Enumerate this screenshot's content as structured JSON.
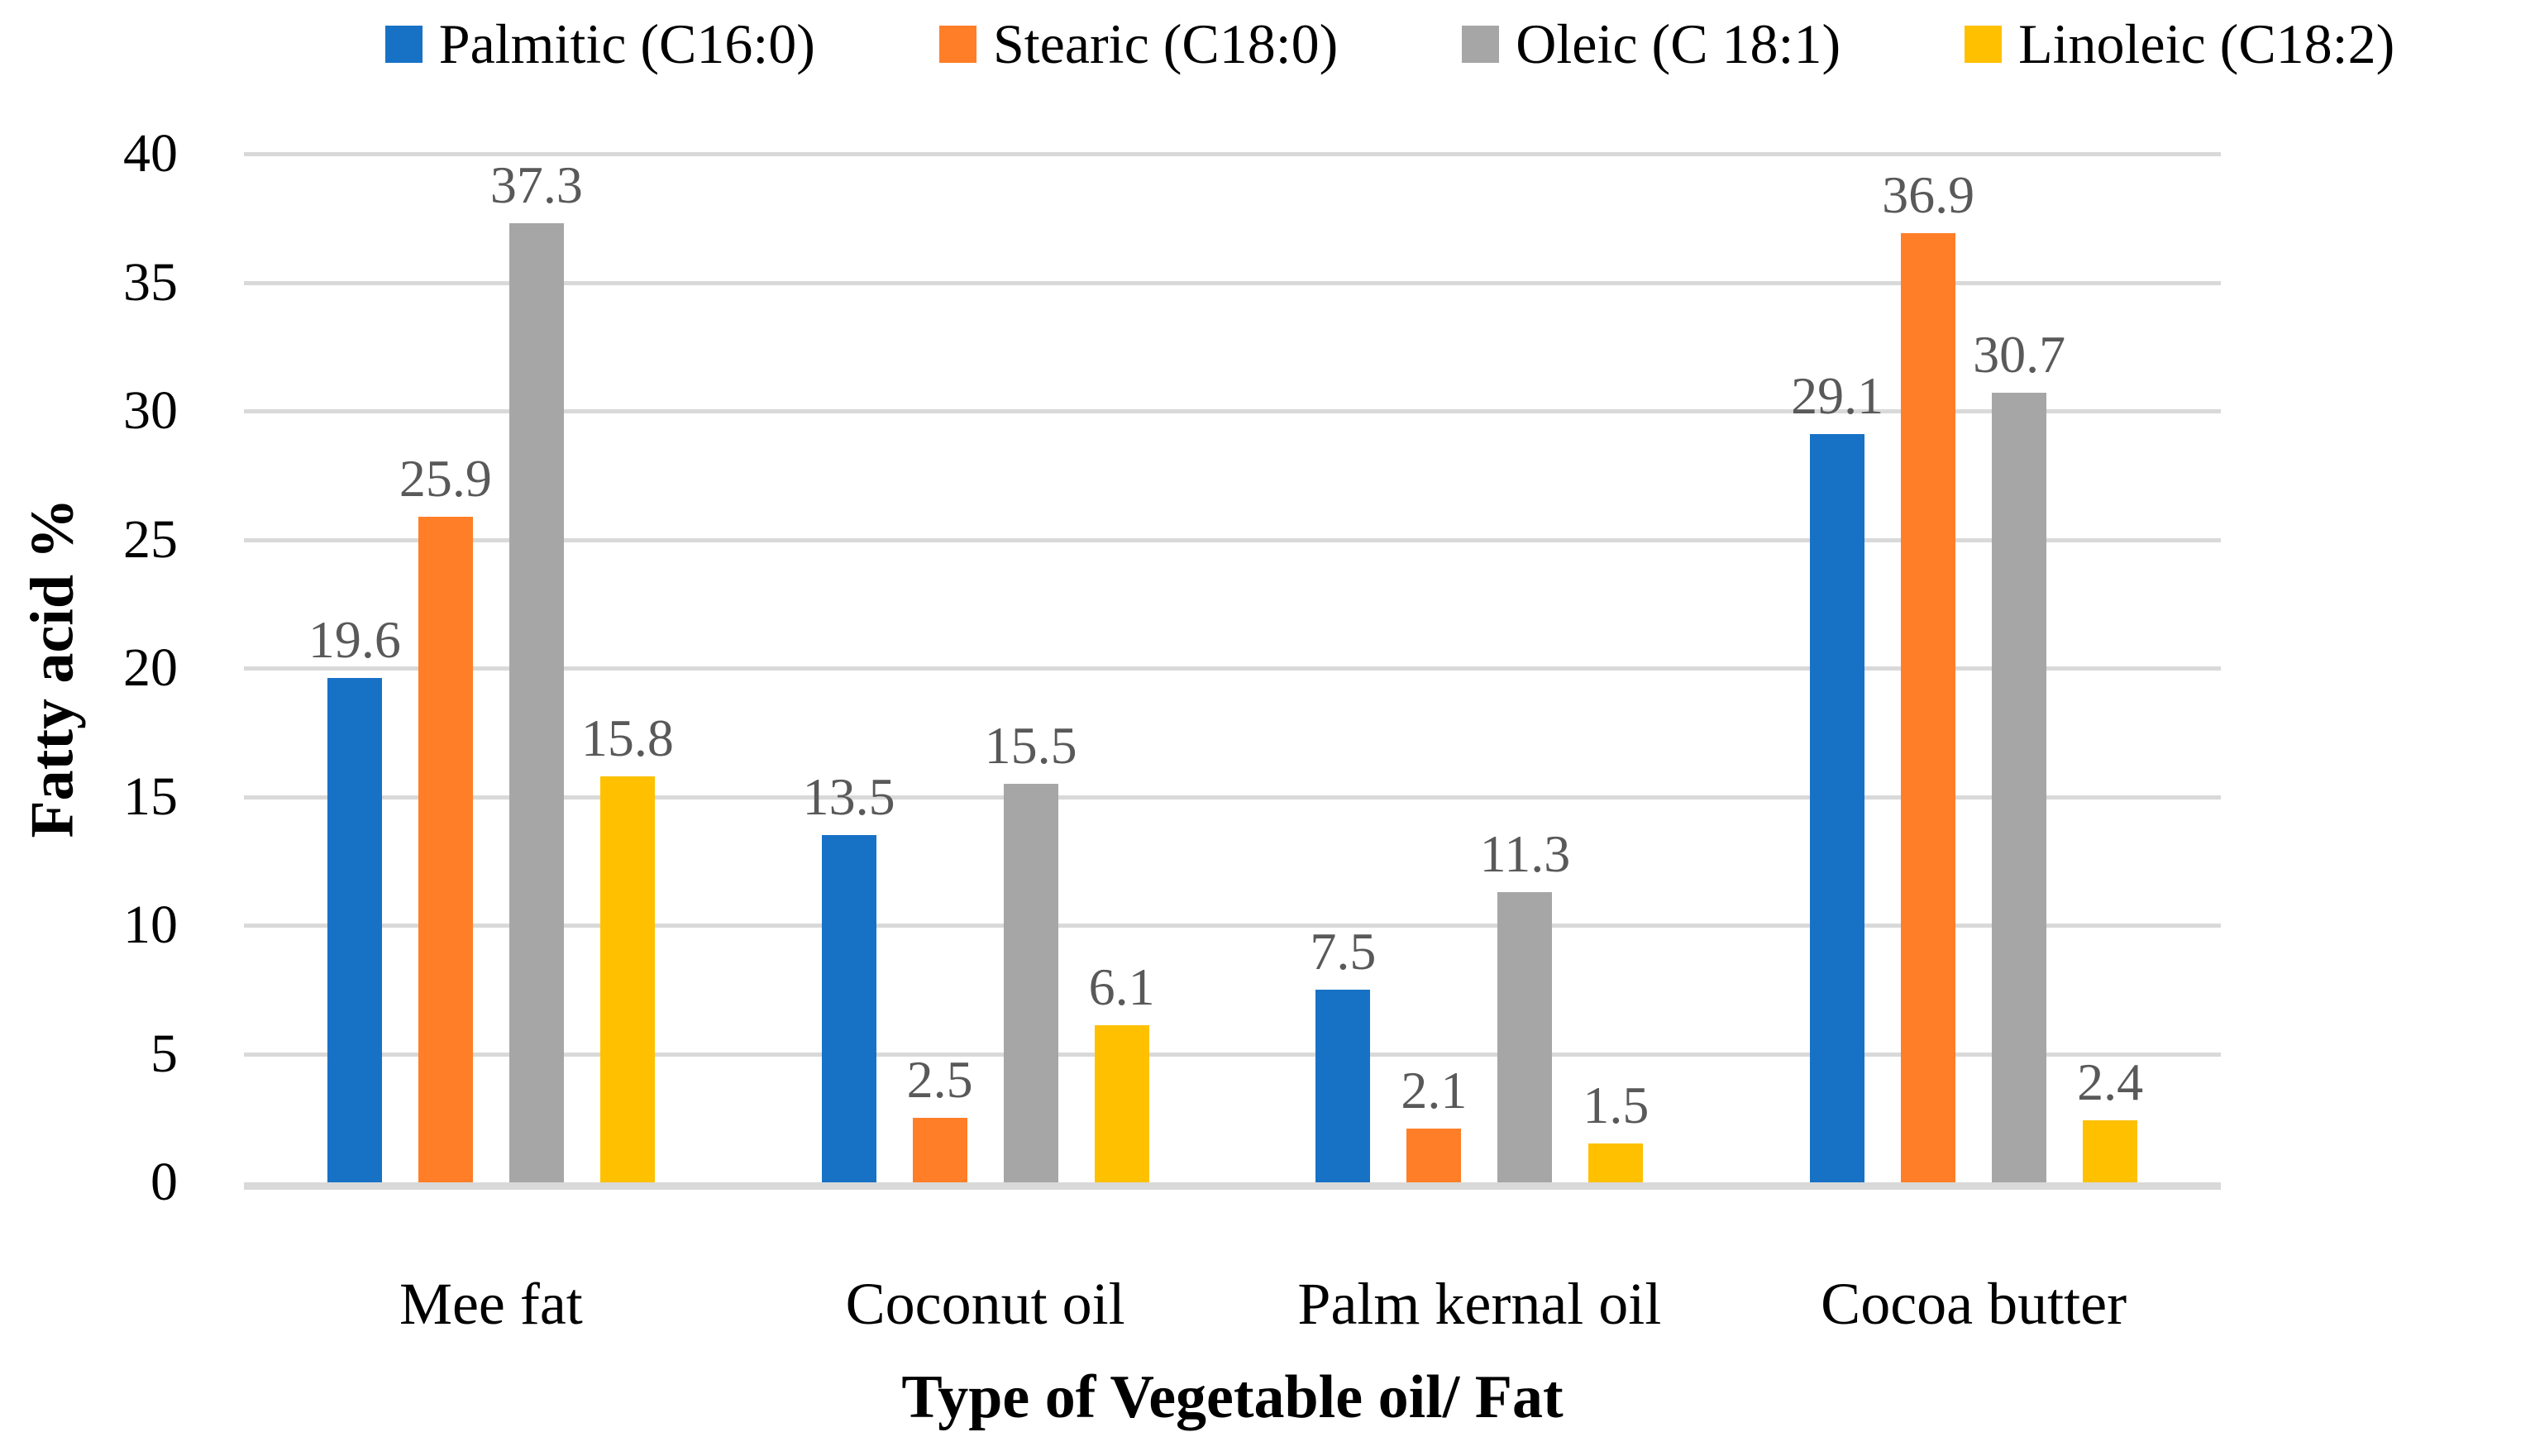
{
  "figure": {
    "kind": "grouped-bar-chart"
  },
  "chart_data": {
    "type": "bar",
    "title": "",
    "xlabel": "Type of Vegetable oil/ Fat",
    "ylabel": "Fatty acid %",
    "categories": [
      "Mee fat",
      "Coconut oil",
      "Palm kernal oil",
      "Cocoa butter"
    ],
    "series": [
      {
        "name": "Palmitic (C16:0)",
        "color": "#1772C6",
        "values": [
          19.6,
          13.5,
          7.5,
          29.1
        ]
      },
      {
        "name": "Stearic (C18:0)",
        "color": "#FF7E27",
        "values": [
          25.9,
          2.5,
          2.1,
          36.9
        ]
      },
      {
        "name": "Oleic (C 18:1)",
        "color": "#A6A6A6",
        "values": [
          37.3,
          15.5,
          11.3,
          30.7
        ]
      },
      {
        "name": "Linoleic (C18:2)",
        "color": "#FFC000",
        "values": [
          15.8,
          6.1,
          1.5,
          2.4
        ]
      }
    ],
    "ylim": [
      0,
      40
    ],
    "yticks": [
      0,
      5,
      10,
      15,
      20,
      25,
      30,
      35,
      40
    ],
    "grid": true,
    "gridline_color": "#D9D9D9",
    "legend_position": "top",
    "data_labels": true,
    "data_label_color": "#595959",
    "data_label_decimals": 1
  }
}
